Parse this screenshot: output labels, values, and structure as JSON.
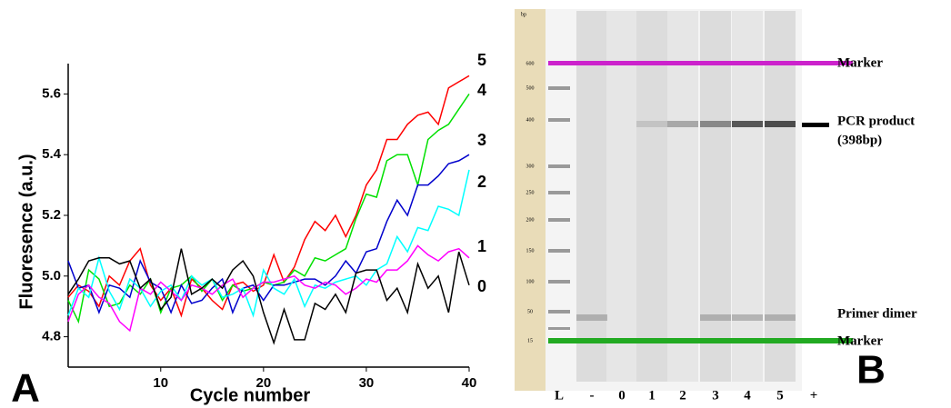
{
  "chart_data": {
    "type": "line",
    "ylabel": "Fluoresence (a.u.)",
    "xlabel": "Cycle number",
    "panel_label": "A",
    "x": [
      1,
      2,
      3,
      4,
      5,
      6,
      7,
      8,
      9,
      10,
      11,
      12,
      13,
      14,
      15,
      16,
      17,
      18,
      19,
      20,
      21,
      22,
      23,
      24,
      25,
      26,
      27,
      28,
      29,
      30,
      31,
      32,
      33,
      34,
      35,
      36,
      37,
      38,
      39,
      40
    ],
    "xlim": [
      1,
      40
    ],
    "xticks": [
      10,
      20,
      30,
      40
    ],
    "ylim": [
      4.7,
      5.7
    ],
    "yticks": [
      4.8,
      {
        "value": 5,
        "label": "5.0"
      },
      5.2,
      5.4,
      5.6
    ],
    "series": [
      {
        "name": "5",
        "color": "#ff0000",
        "values": [
          4.93,
          4.97,
          4.95,
          4.9,
          5.0,
          4.97,
          5.05,
          5.09,
          4.97,
          4.92,
          4.96,
          4.87,
          4.99,
          4.96,
          4.92,
          4.89,
          4.97,
          4.98,
          4.95,
          4.97,
          5.07,
          4.98,
          5.03,
          5.12,
          5.18,
          5.15,
          5.2,
          5.13,
          5.2,
          5.3,
          5.35,
          5.45,
          5.45,
          5.5,
          5.53,
          5.54,
          5.5,
          5.62,
          5.64,
          5.66
        ]
      },
      {
        "name": "4",
        "color": "#00e000",
        "values": [
          4.92,
          4.85,
          5.02,
          4.99,
          4.9,
          4.91,
          4.97,
          4.94,
          4.99,
          4.88,
          4.96,
          4.97,
          5.0,
          4.95,
          4.99,
          4.92,
          4.97,
          4.95,
          4.96,
          4.98,
          4.97,
          4.98,
          5.02,
          5.0,
          5.06,
          5.05,
          5.07,
          5.09,
          5.19,
          5.27,
          5.26,
          5.38,
          5.4,
          5.4,
          5.3,
          5.45,
          5.48,
          5.5,
          5.55,
          5.6
        ]
      },
      {
        "name": "3",
        "color": "#0000cc",
        "values": [
          5.05,
          4.96,
          4.97,
          4.88,
          4.97,
          4.96,
          4.93,
          5.05,
          4.98,
          4.96,
          4.88,
          4.97,
          4.91,
          4.92,
          4.96,
          4.99,
          4.88,
          4.96,
          4.97,
          4.92,
          4.97,
          4.97,
          4.98,
          4.99,
          4.99,
          4.97,
          5.0,
          5.05,
          5.01,
          5.08,
          5.09,
          5.18,
          5.25,
          5.2,
          5.3,
          5.3,
          5.33,
          5.37,
          5.38,
          5.4
        ]
      },
      {
        "name": "2",
        "color": "#00ffff",
        "values": [
          4.87,
          4.96,
          4.93,
          5.06,
          4.95,
          4.89,
          4.99,
          4.96,
          4.9,
          4.95,
          4.97,
          4.92,
          5.0,
          4.97,
          4.99,
          4.93,
          4.94,
          4.96,
          4.87,
          5.02,
          4.96,
          4.94,
          4.99,
          4.9,
          4.97,
          4.96,
          4.98,
          4.99,
          5.0,
          4.97,
          5.02,
          5.04,
          5.13,
          5.08,
          5.16,
          5.15,
          5.23,
          5.22,
          5.2,
          5.35
        ]
      },
      {
        "name": "1",
        "color": "#ff00ff",
        "values": [
          4.85,
          4.94,
          4.97,
          4.93,
          4.91,
          4.85,
          4.82,
          4.96,
          4.94,
          4.98,
          4.95,
          4.92,
          4.97,
          4.96,
          4.94,
          4.97,
          4.99,
          4.93,
          4.96,
          4.98,
          4.98,
          4.99,
          5.0,
          4.97,
          4.96,
          4.98,
          4.97,
          4.94,
          4.96,
          4.99,
          4.98,
          5.02,
          5.02,
          5.05,
          5.1,
          5.07,
          5.05,
          5.08,
          5.09,
          5.06
        ]
      },
      {
        "name": "0",
        "color": "#000000",
        "values": [
          4.94,
          4.99,
          5.05,
          5.06,
          5.06,
          5.04,
          5.05,
          4.96,
          4.99,
          4.89,
          4.93,
          5.09,
          4.94,
          4.96,
          4.99,
          4.96,
          5.02,
          5.05,
          5.0,
          4.88,
          4.78,
          4.89,
          4.79,
          4.79,
          4.91,
          4.89,
          4.94,
          4.88,
          5.01,
          5.02,
          5.02,
          4.92,
          4.96,
          4.88,
          5.04,
          4.96,
          5.0,
          4.88,
          5.08,
          4.97
        ]
      }
    ]
  },
  "gel": {
    "panel_label": "B",
    "unit": "bp",
    "ladder": [
      "600",
      "500",
      "400",
      "300",
      "250",
      "200",
      "150",
      "100",
      "50",
      "15"
    ],
    "lanes": [
      "L",
      "-",
      "0",
      "1",
      "2",
      "3",
      "4",
      "5",
      "+"
    ],
    "annotations": {
      "marker_top": "Marker",
      "product_line1": "PCR product",
      "product_line2": "(398bp)",
      "primer_dimer": "Primer dimer",
      "marker_bottom": "Marker"
    }
  }
}
